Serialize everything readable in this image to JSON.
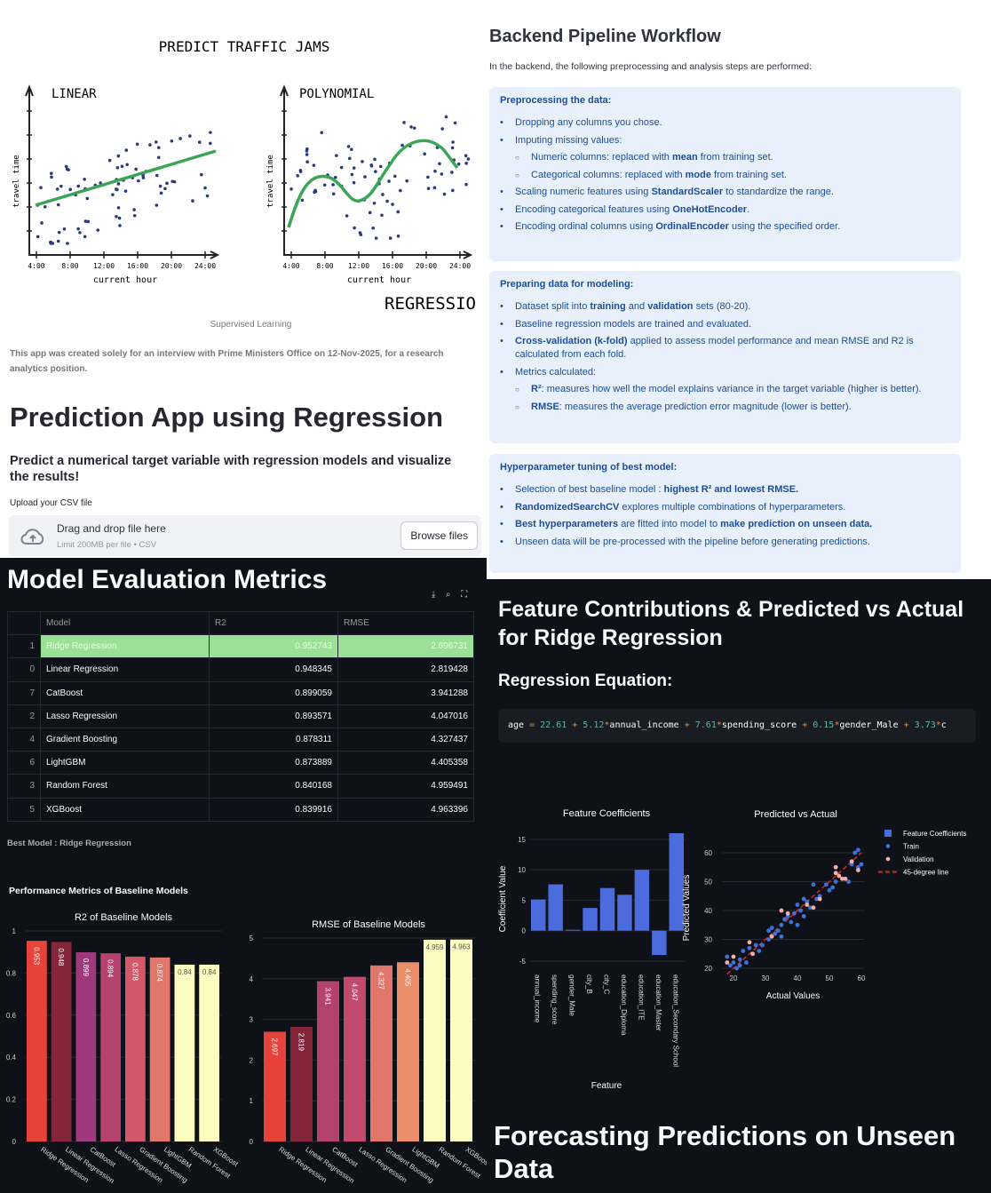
{
  "illustration": {
    "title": "PREDICT TRAFFIC JAMS",
    "panels": [
      {
        "label": "LINEAR",
        "ylabel": "travel time",
        "xlabel": "current hour",
        "xticks": [
          "4:00",
          "8:00",
          "12:00",
          "16:00",
          "20:00",
          "24:00"
        ]
      },
      {
        "label": "POLYNOMIAL",
        "ylabel": "travel time",
        "xlabel": "current hour",
        "xticks": [
          "4:00",
          "8:00",
          "12:00",
          "16:00",
          "20:00",
          "24:00"
        ]
      }
    ],
    "banner": "REGRESSIO",
    "line_color": "#3aa655",
    "dot_color": "#2a3a7a"
  },
  "intro": {
    "caption": "Supervised Learning",
    "note": "This app was created solely for an interview with Prime Ministers Office on 12-Nov-2025, for a research analytics position.",
    "title": "Prediction App using Regression",
    "subtitle": "Predict a numerical target variable with regression models and visualize the results!",
    "upload_label": "Upload your CSV file",
    "drop_text": "Drag and drop file here",
    "limit_text": "Limit 200MB per file • CSV",
    "browse_label": "Browse files",
    "upload_icon": "cloud-upload-icon"
  },
  "pipeline": {
    "title": "Backend Pipeline Workflow",
    "intro": "In the backend, the following preprocessing and analysis steps are performed:",
    "sections": [
      {
        "title": "Preprocessing the data:",
        "items": [
          {
            "level": 1,
            "parts": [
              {
                "t": "Dropping any columns you chose."
              }
            ]
          },
          {
            "level": 1,
            "parts": [
              {
                "t": "Imputing missing values:"
              }
            ]
          },
          {
            "level": 2,
            "parts": [
              {
                "t": "Numeric columns: replaced with "
              },
              {
                "t": "mean",
                "b": true
              },
              {
                "t": " from training set."
              }
            ]
          },
          {
            "level": 2,
            "parts": [
              {
                "t": "Categorical columns: replaced with "
              },
              {
                "t": "mode",
                "b": true
              },
              {
                "t": " from training set."
              }
            ]
          },
          {
            "level": 1,
            "parts": [
              {
                "t": "Scaling numeric features using "
              },
              {
                "t": "StandardScaler",
                "b": true
              },
              {
                "t": " to standardize the range."
              }
            ]
          },
          {
            "level": 1,
            "parts": [
              {
                "t": "Encoding categorical features using "
              },
              {
                "t": "OneHotEncoder",
                "b": true
              },
              {
                "t": "."
              }
            ]
          },
          {
            "level": 1,
            "parts": [
              {
                "t": "Encoding ordinal columns using "
              },
              {
                "t": "OrdinalEncoder",
                "b": true
              },
              {
                "t": " using the specified order."
              }
            ]
          }
        ]
      },
      {
        "title": "Preparing data for modeling:",
        "items": [
          {
            "level": 1,
            "parts": [
              {
                "t": "Dataset split into "
              },
              {
                "t": "training",
                "b": true
              },
              {
                "t": " and "
              },
              {
                "t": "validation",
                "b": true
              },
              {
                "t": " sets (80-20)."
              }
            ]
          },
          {
            "level": 1,
            "parts": [
              {
                "t": "Baseline regression models are trained and evaluated."
              }
            ]
          },
          {
            "level": 1,
            "parts": [
              {
                "t": "Cross-validation (k-fold)",
                "b": true
              },
              {
                "t": " applied to assess model performance and mean RMSE and R2 is calculated from each fold."
              }
            ]
          },
          {
            "level": 1,
            "parts": [
              {
                "t": "Metrics calculated:"
              }
            ]
          },
          {
            "level": 2,
            "parts": [
              {
                "t": "R²",
                "b": true
              },
              {
                "t": ": measures how well the model explains variance in the target variable (higher is better)."
              }
            ]
          },
          {
            "level": 2,
            "parts": [
              {
                "t": "RMSE",
                "b": true
              },
              {
                "t": ": measures the average prediction error magnitude (lower is better)."
              }
            ]
          }
        ]
      },
      {
        "title": "Hyperparameter tuning of best model:",
        "items": [
          {
            "level": 1,
            "parts": [
              {
                "t": "Selection of best baseline model : "
              },
              {
                "t": "highest R² and lowest RMSE.",
                "b": true
              }
            ]
          },
          {
            "level": 1,
            "parts": [
              {
                "t": "RandomizedSearchCV",
                "b": true
              },
              {
                "t": " explores multiple combinations of hyperparameters."
              }
            ]
          },
          {
            "level": 1,
            "parts": [
              {
                "t": "Best hyperparameters",
                "b": true
              },
              {
                "t": " are fitted into model to "
              },
              {
                "t": "make prediction on unseen data.",
                "b": true
              }
            ]
          },
          {
            "level": 1,
            "parts": [
              {
                "t": "Unseen data will be pre-processed with the pipeline before generating predictions."
              }
            ]
          }
        ]
      }
    ]
  },
  "evaluation": {
    "title": "Model Evaluation Metrics",
    "toolbar": [
      "download-icon",
      "search-icon",
      "fullscreen-icon"
    ],
    "columns": [
      "",
      "Model",
      "R2",
      "RMSE"
    ],
    "rows": [
      {
        "index": "1",
        "model": "Ridge Regression",
        "r2": "0.952743",
        "rmse": "2.696731",
        "highlight": true
      },
      {
        "index": "0",
        "model": "Linear Regression",
        "r2": "0.948345",
        "rmse": "2.819428"
      },
      {
        "index": "7",
        "model": "CatBoost",
        "r2": "0.899059",
        "rmse": "3.941288"
      },
      {
        "index": "2",
        "model": "Lasso Regression",
        "r2": "0.893571",
        "rmse": "4.047016"
      },
      {
        "index": "4",
        "model": "Gradient Boosting",
        "r2": "0.878311",
        "rmse": "4.327437"
      },
      {
        "index": "6",
        "model": "LightGBM",
        "r2": "0.873889",
        "rmse": "4.405358"
      },
      {
        "index": "3",
        "model": "Random Forest",
        "r2": "0.840168",
        "rmse": "4.959491"
      },
      {
        "index": "5",
        "model": "XGBoost",
        "r2": "0.839916",
        "rmse": "4.963396"
      }
    ],
    "highlight_color": "#9be095",
    "best_model": "Best Model : Ridge Regression",
    "perf_title": "Performance Metrics of Baseline Models"
  },
  "contrib": {
    "title": "Feature Contributions & Predicted vs Actual for Ridge Regression",
    "eq_heading": "Regression Equation:",
    "equation": {
      "target": "age",
      "intercept": "22.61",
      "terms": [
        {
          "coef": "5.12",
          "feature": "annual_income"
        },
        {
          "coef": "7.61",
          "feature": "spending_score"
        },
        {
          "coef": "0.15",
          "feature": "gender_Male"
        },
        {
          "coef": "3.73",
          "feature": "c"
        }
      ]
    },
    "forecast_title": "Forecasting Predictions on Unseen Data"
  },
  "chart_data": [
    {
      "type": "bar",
      "title": "R2 of Baseline Models",
      "categories": [
        "Ridge Regression",
        "Linear Regression",
        "CatBoost",
        "Lasso Regression",
        "Gradient Boosting",
        "LightGBM",
        "Random Forest",
        "XGBoost"
      ],
      "values": [
        0.953,
        0.948,
        0.899,
        0.894,
        0.878,
        0.874,
        0.84,
        0.84
      ],
      "labels": [
        "0.953",
        "0.948",
        "0.899",
        "0.894",
        "0.878",
        "0.874",
        "0.84",
        "0.84"
      ],
      "colors": [
        "#e8433b",
        "#85253a",
        "#9e3a7c",
        "#b3426f",
        "#d3596a",
        "#e0776a",
        "#fdfcc0",
        "#fdfcc0"
      ],
      "yticks": [
        "0",
        "0.2",
        "0.4",
        "0.6",
        "0.8",
        "1"
      ],
      "ylim": [
        0,
        1
      ],
      "grid": true
    },
    {
      "type": "bar",
      "title": "RMSE of Baseline Models",
      "categories": [
        "Ridge Regression",
        "Linear Regression",
        "CatBoost",
        "Lasso Regression",
        "Gradient Boosting",
        "LightGBM",
        "Random Forest",
        "XGBoost"
      ],
      "values": [
        2.697,
        2.819,
        3.941,
        4.047,
        4.327,
        4.405,
        4.959,
        4.963
      ],
      "labels": [
        "2.697",
        "2.819",
        "3.941",
        "4.047",
        "4.327",
        "4.405",
        "4.959",
        "4.963"
      ],
      "colors": [
        "#e8433b",
        "#85253a",
        "#b3426f",
        "#c24a6a",
        "#e0776a",
        "#ea8e6a",
        "#fdfcc0",
        "#fdfcc0"
      ],
      "yticks": [
        "0",
        "1",
        "2",
        "3",
        "4",
        "5"
      ],
      "ylim": [
        0,
        5
      ],
      "grid": true
    },
    {
      "type": "bar",
      "title": "Feature Coefficients",
      "xlabel": "Feature",
      "ylabel": "Coefficient Value",
      "categories": [
        "annual_income",
        "spending_score",
        "gender_Male",
        "city_B",
        "city_C",
        "education_Diploma",
        "education_ITE",
        "education_Master",
        "education_Secondary School"
      ],
      "values": [
        5.12,
        7.61,
        0.15,
        3.73,
        7.0,
        5.9,
        10.0,
        -4.0,
        16.0
      ],
      "color": "#4c6bdc",
      "yticks": [
        "-5",
        "0",
        "5",
        "10",
        "15"
      ],
      "ylim": [
        -5,
        16
      ],
      "grid": true
    },
    {
      "type": "scatter",
      "title": "Predicted vs Actual",
      "xlabel": "Actual Values",
      "ylabel": "Predicted Values",
      "xticks": [
        "20",
        "30",
        "40",
        "50",
        "60"
      ],
      "yticks": [
        "20",
        "30",
        "40",
        "50",
        "60"
      ],
      "xlim": [
        17,
        61
      ],
      "ylim": [
        17,
        62
      ],
      "legend": [
        "Feature Coefficients",
        "Train",
        "Validation",
        "45-degree line"
      ],
      "legend_position": "right",
      "series": [
        {
          "name": "Train",
          "color": "#3f72d8",
          "points": [
            [
              18,
              24
            ],
            [
              19,
              21
            ],
            [
              20,
              22
            ],
            [
              21,
              20
            ],
            [
              22,
              21
            ],
            [
              22,
              23
            ],
            [
              23,
              26
            ],
            [
              24,
              22
            ],
            [
              25,
              27
            ],
            [
              26,
              25
            ],
            [
              27,
              28
            ],
            [
              28,
              26
            ],
            [
              29,
              28
            ],
            [
              31,
              33
            ],
            [
              31,
              30
            ],
            [
              32,
              34
            ],
            [
              33,
              32
            ],
            [
              34,
              33
            ],
            [
              35,
              31
            ],
            [
              35,
              35
            ],
            [
              36,
              37
            ],
            [
              37,
              38
            ],
            [
              38,
              36
            ],
            [
              39,
              39
            ],
            [
              40,
              35
            ],
            [
              40,
              42
            ],
            [
              41,
              40
            ],
            [
              42,
              44
            ],
            [
              42,
              38
            ],
            [
              43,
              43
            ],
            [
              44,
              41
            ],
            [
              45,
              49
            ],
            [
              46,
              44
            ],
            [
              47,
              45
            ],
            [
              49,
              49
            ],
            [
              50,
              47
            ],
            [
              51,
              48
            ],
            [
              52,
              50
            ],
            [
              56,
              50
            ],
            [
              57,
              56
            ],
            [
              58,
              60
            ],
            [
              59,
              61
            ],
            [
              59,
              55
            ],
            [
              60,
              56
            ]
          ]
        },
        {
          "name": "Validation",
          "color": "#f4b0a8",
          "points": [
            [
              18,
              22
            ],
            [
              20,
              24
            ],
            [
              25,
              29
            ],
            [
              26,
              25
            ],
            [
              32,
              31
            ],
            [
              35,
              40
            ],
            [
              37,
              39
            ],
            [
              43,
              42
            ],
            [
              45,
              41
            ],
            [
              47,
              44
            ],
            [
              52,
              55
            ],
            [
              53,
              52
            ],
            [
              54,
              51
            ],
            [
              55,
              51
            ],
            [
              57,
              57
            ],
            [
              59,
              54
            ],
            [
              52,
              53
            ]
          ]
        },
        {
          "name": "45-degree line",
          "color": "#d62728",
          "points": [
            [
              18,
              18
            ],
            [
              60,
              60
            ]
          ]
        }
      ]
    }
  ]
}
